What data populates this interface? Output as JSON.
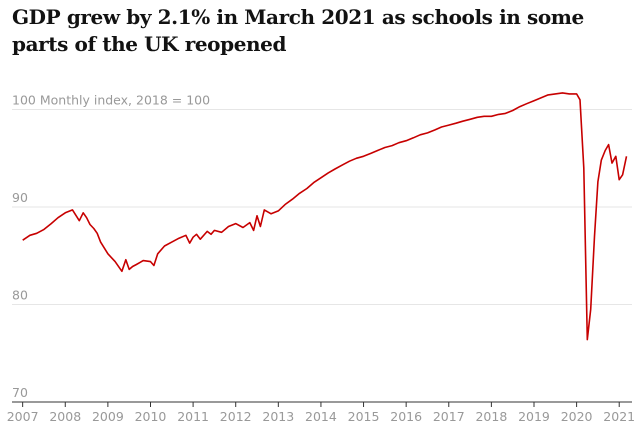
{
  "chart_data": {
    "type": "line",
    "title": "GDP grew by 2.1% in March 2021 as schools in some parts of the UK reopened",
    "ylabel": "Monthly index, 2018 = 100",
    "ylim": [
      70,
      102
    ],
    "yticks": [
      70,
      80,
      90,
      100
    ],
    "xlim": [
      2006.75,
      2021.3
    ],
    "xticks": [
      "2007",
      "2008",
      "2009",
      "2010",
      "2011",
      "2012",
      "2013",
      "2014",
      "2015",
      "2016",
      "2017",
      "2018",
      "2019",
      "2020",
      "2021"
    ],
    "grid": "horizontal",
    "color": "#c70000",
    "series": [
      {
        "x": [
          2007.0,
          2007.17,
          2007.33,
          2007.5,
          2007.67,
          2007.83,
          2008.0,
          2008.17,
          2008.33,
          2008.42,
          2008.5,
          2008.58,
          2008.67,
          2008.75,
          2008.83,
          2009.0,
          2009.17,
          2009.33,
          2009.42,
          2009.5,
          2009.58,
          2009.67,
          2009.75,
          2009.83,
          2010.0,
          2010.08,
          2010.17,
          2010.33,
          2010.5,
          2010.67,
          2010.83,
          2010.92,
          2011.0,
          2011.08,
          2011.17,
          2011.33,
          2011.42,
          2011.5,
          2011.67,
          2011.83,
          2012.0,
          2012.17,
          2012.33,
          2012.42,
          2012.5,
          2012.58,
          2012.67,
          2012.83,
          2013.0,
          2013.17,
          2013.33,
          2013.5,
          2013.67,
          2013.83,
          2014.0,
          2014.17,
          2014.33,
          2014.5,
          2014.67,
          2014.83,
          2015.0,
          2015.17,
          2015.33,
          2015.5,
          2015.67,
          2015.83,
          2016.0,
          2016.17,
          2016.33,
          2016.5,
          2016.67,
          2016.83,
          2017.0,
          2017.17,
          2017.33,
          2017.5,
          2017.67,
          2017.83,
          2018.0,
          2018.17,
          2018.33,
          2018.5,
          2018.67,
          2018.83,
          2019.0,
          2019.17,
          2019.33,
          2019.5,
          2019.67,
          2019.83,
          2020.0,
          2020.08,
          2020.17,
          2020.25,
          2020.33,
          2020.42,
          2020.5,
          2020.58,
          2020.67,
          2020.75,
          2020.83,
          2020.92,
          2021.0,
          2021.08,
          2021.17
        ],
        "y": [
          86.6,
          87.1,
          87.3,
          87.7,
          88.3,
          88.9,
          89.4,
          89.7,
          88.6,
          89.4,
          88.9,
          88.2,
          87.8,
          87.3,
          86.4,
          85.2,
          84.4,
          83.4,
          84.6,
          83.6,
          83.9,
          84.1,
          84.3,
          84.5,
          84.4,
          84.0,
          85.2,
          86.0,
          86.4,
          86.8,
          87.1,
          86.3,
          86.9,
          87.2,
          86.7,
          87.5,
          87.2,
          87.6,
          87.4,
          88.0,
          88.3,
          87.9,
          88.4,
          87.6,
          89.1,
          88.0,
          89.7,
          89.3,
          89.6,
          90.3,
          90.8,
          91.4,
          91.9,
          92.5,
          93.0,
          93.5,
          93.9,
          94.3,
          94.7,
          95.0,
          95.2,
          95.5,
          95.8,
          96.1,
          96.3,
          96.6,
          96.8,
          97.1,
          97.4,
          97.6,
          97.9,
          98.2,
          98.4,
          98.6,
          98.8,
          99.0,
          99.2,
          99.3,
          99.3,
          99.5,
          99.6,
          99.9,
          100.3,
          100.6,
          100.9,
          101.2,
          101.5,
          101.6,
          101.7,
          101.6,
          101.6,
          101.0,
          94.0,
          76.4,
          79.5,
          87.0,
          92.6,
          94.8,
          95.8,
          96.4,
          94.5,
          95.2,
          92.8,
          93.3,
          95.2
        ]
      }
    ]
  }
}
